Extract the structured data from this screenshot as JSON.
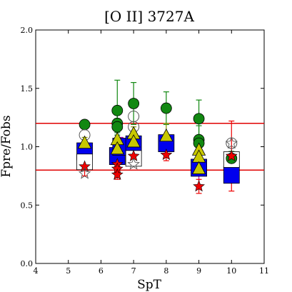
{
  "chart_data": {
    "type": "scatter",
    "title": "[O II] 3727A",
    "xlabel": "SpT",
    "ylabel": "Fpre/Fobs",
    "xlim": [
      4,
      11
    ],
    "ylim": [
      0.0,
      2.0
    ],
    "xticks": [
      4,
      5,
      6,
      7,
      8,
      9,
      10,
      11
    ],
    "yticks": [
      0.0,
      0.5,
      1.0,
      1.5,
      2.0
    ],
    "ytick_labels": [
      "0.0",
      "0.5",
      "1.0",
      "1.5",
      "2.0"
    ],
    "reference_lines": [
      {
        "y": 1.2,
        "color": "#e00000"
      },
      {
        "y": 0.8,
        "color": "#e00000"
      }
    ],
    "grid": false,
    "colors": {
      "blue_box": "#0000ee",
      "green_circle": "#118811",
      "olive_triangle": "#c8c800",
      "red_star": "#ee0000",
      "open_marker": "#555555"
    },
    "series": [
      {
        "marker": "square-blue",
        "points": [
          {
            "x": 5.5,
            "y": 0.96,
            "yerr": 0.07
          },
          {
            "x": 6.5,
            "y": 0.92,
            "yerr": 0.1
          },
          {
            "x": 6.6,
            "y": 1.0,
            "yerr": 0.08
          },
          {
            "x": 7.0,
            "y": 1.02,
            "yerr": 0.09
          },
          {
            "x": 8.0,
            "y": 1.03,
            "yerr": 0.06
          },
          {
            "x": 9.0,
            "y": 0.82,
            "yerr": 0.17
          },
          {
            "x": 10.0,
            "y": 0.76,
            "yerr": 0.06
          }
        ]
      },
      {
        "marker": "square-open",
        "points": [
          {
            "x": 5.5,
            "y": 0.87
          },
          {
            "x": 7.0,
            "y": 0.9
          },
          {
            "x": 10.0,
            "y": 0.89
          }
        ]
      },
      {
        "marker": "circle-green",
        "points": [
          {
            "x": 5.5,
            "y": 1.19,
            "yerr": 0.03
          },
          {
            "x": 6.5,
            "y": 1.31,
            "yerr": 0.26
          },
          {
            "x": 6.5,
            "y": 1.2,
            "yerr": 0.08
          },
          {
            "x": 6.5,
            "y": 1.17,
            "yerr": 0.07
          },
          {
            "x": 7.0,
            "y": 1.37,
            "yerr": 0.18
          },
          {
            "x": 8.0,
            "y": 1.33,
            "yerr": 0.14
          },
          {
            "x": 9.0,
            "y": 1.24,
            "yerr": 0.16
          },
          {
            "x": 9.0,
            "y": 1.06,
            "yerr": 0.12
          },
          {
            "x": 9.0,
            "y": 1.03,
            "yerr": 0.05
          },
          {
            "x": 10.0,
            "y": 0.9,
            "yerr": 0.06
          }
        ]
      },
      {
        "marker": "circle-open",
        "points": [
          {
            "x": 5.5,
            "y": 1.1
          },
          {
            "x": 7.0,
            "y": 1.26
          },
          {
            "x": 7.0,
            "y": 1.17
          },
          {
            "x": 10.0,
            "y": 1.03
          }
        ]
      },
      {
        "marker": "triangle-olive",
        "points": [
          {
            "x": 5.5,
            "y": 1.03,
            "yerr": 0.05
          },
          {
            "x": 6.5,
            "y": 1.06,
            "yerr": 0.12
          },
          {
            "x": 6.5,
            "y": 0.98,
            "yerr": 0.07
          },
          {
            "x": 7.0,
            "y": 1.11,
            "yerr": 0.06
          },
          {
            "x": 7.0,
            "y": 1.04,
            "yerr": 0.08
          },
          {
            "x": 8.0,
            "y": 1.09,
            "yerr": 0.11
          },
          {
            "x": 9.0,
            "y": 0.97,
            "yerr": 0.05
          },
          {
            "x": 9.0,
            "y": 0.91,
            "yerr": 0.05
          },
          {
            "x": 9.0,
            "y": 0.81,
            "yerr": 0.05
          }
        ]
      },
      {
        "marker": "star-red",
        "points": [
          {
            "x": 5.5,
            "y": 0.83,
            "yerr": 0.08
          },
          {
            "x": 6.5,
            "y": 0.85,
            "yerr": 0.05
          },
          {
            "x": 6.5,
            "y": 0.81,
            "yerr": 0.05
          },
          {
            "x": 6.5,
            "y": 0.76,
            "yerr": 0.04
          },
          {
            "x": 7.0,
            "y": 0.92,
            "yerr": 0.08
          },
          {
            "x": 8.0,
            "y": 0.93,
            "yerr": 0.05
          },
          {
            "x": 9.0,
            "y": 0.66,
            "yerr": 0.06
          },
          {
            "x": 10.0,
            "y": 0.92,
            "yerr": 0.3
          }
        ]
      },
      {
        "marker": "star-open",
        "points": [
          {
            "x": 5.5,
            "y": 0.77
          },
          {
            "x": 7.0,
            "y": 0.85
          },
          {
            "x": 10.0,
            "y": 1.03
          }
        ]
      }
    ]
  }
}
